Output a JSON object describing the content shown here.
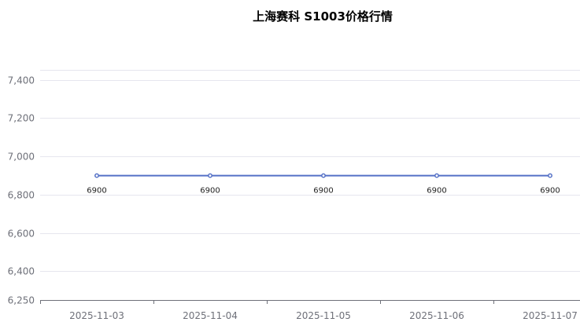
{
  "chart_data": {
    "type": "line",
    "title": "上海赛科 S1003价格行情",
    "categories": [
      "2025-11-03",
      "2025-11-04",
      "2025-11-05",
      "2025-11-06",
      "2025-11-07"
    ],
    "series": [
      {
        "values": [
          6900,
          6900,
          6900,
          6900,
          6900
        ],
        "color": "#5470c6",
        "labels": [
          "6900",
          "6900",
          "6900",
          "6900",
          "6900"
        ]
      }
    ],
    "ylim": [
      6250,
      7450
    ],
    "yticks": [
      6250,
      6400,
      6600,
      6800,
      7000,
      7200,
      7400
    ],
    "ytick_labels": [
      "6,250",
      "6,400",
      "6,600",
      "6,800",
      "7,000",
      "7,200",
      "7,400"
    ],
    "grid": true,
    "xlabel": "",
    "ylabel": ""
  }
}
